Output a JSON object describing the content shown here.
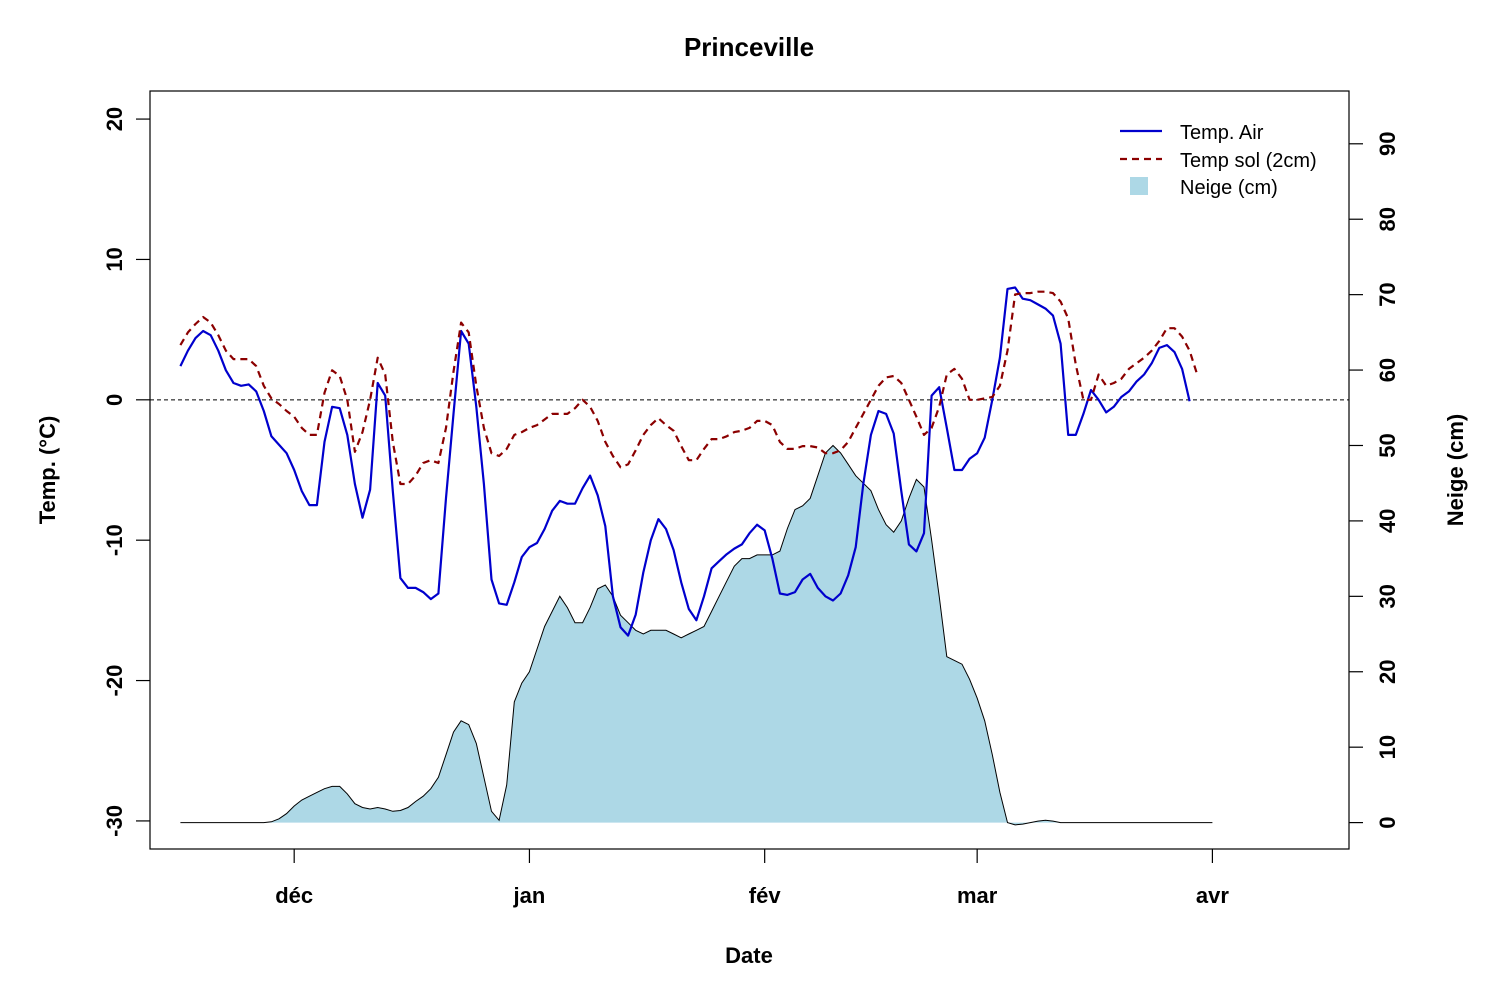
{
  "chart_data": {
    "type": "line",
    "title": "Princeville",
    "xlabel": "Date",
    "ylabel": "Temp. (°C)",
    "y2label": "Neige (cm)",
    "ylim": [
      -32,
      22
    ],
    "y2lim": [
      -3.5,
      97
    ],
    "yticks": [
      -30,
      -20,
      -10,
      0,
      10,
      20
    ],
    "y2ticks": [
      0,
      10,
      20,
      30,
      40,
      50,
      60,
      70,
      80,
      90
    ],
    "x_start_day": -15,
    "xlim": [
      -19,
      139
    ],
    "xticks": [
      {
        "label": "déc",
        "day": 0
      },
      {
        "label": "jan",
        "day": 31
      },
      {
        "label": "fév",
        "day": 62
      },
      {
        "label": "mar",
        "day": 90
      },
      {
        "label": "avr",
        "day": 121
      }
    ],
    "reference_line": {
      "y": 0,
      "style": "dashed",
      "color": "#000000"
    },
    "legend": {
      "position": "top-right",
      "entries": [
        {
          "label": "Temp. Air",
          "color": "#0000cd",
          "style": "solid"
        },
        {
          "label": "Temp sol (2cm)",
          "color": "#8b0000",
          "style": "dashed"
        },
        {
          "label": "Neige (cm)",
          "color": "#add8e6",
          "style": "fill"
        }
      ]
    },
    "series": [
      {
        "name": "Temp. Air",
        "axis": "left",
        "color": "#0000cd",
        "style": "solid",
        "values": [
          2.4,
          3.5,
          4.4,
          4.9,
          4.6,
          3.5,
          2.1,
          1.2,
          1.0,
          1.1,
          0.6,
          -0.8,
          -2.6,
          -3.2,
          -3.8,
          -5.0,
          -6.5,
          -7.5,
          -7.5,
          -3.0,
          -0.5,
          -0.6,
          -2.5,
          -6.0,
          -8.4,
          -6.4,
          1.2,
          0.3,
          -6.5,
          -12.7,
          -13.4,
          -13.4,
          -13.7,
          -14.2,
          -13.8,
          -7.0,
          -1.0,
          4.9,
          4.0,
          -0.5,
          -6.0,
          -12.8,
          -14.5,
          -14.6,
          -13.0,
          -11.2,
          -10.5,
          -10.2,
          -9.2,
          -7.9,
          -7.2,
          -7.4,
          -7.4,
          -6.3,
          -5.4,
          -6.8,
          -9.0,
          -14.0,
          -16.2,
          -16.8,
          -15.3,
          -12.3,
          -10.0,
          -8.5,
          -9.2,
          -10.7,
          -13.0,
          -14.9,
          -15.7,
          -14.0,
          -12.0,
          -11.5,
          -11.0,
          -10.6,
          -10.3,
          -9.5,
          -8.9,
          -9.3,
          -11.3,
          -13.8,
          -13.9,
          -13.7,
          -12.8,
          -12.4,
          -13.4,
          -14.0,
          -14.3,
          -13.8,
          -12.5,
          -10.5,
          -6.0,
          -2.5,
          -0.8,
          -1.0,
          -2.4,
          -6.5,
          -10.3,
          -10.8,
          -9.5,
          0.3,
          0.9,
          -2.0,
          -5.0,
          -5.0,
          -4.2,
          -3.8,
          -2.7,
          0.0,
          3.0,
          7.9,
          8.0,
          7.2,
          7.1,
          6.8,
          6.5,
          6.0,
          4.0,
          -2.5,
          -2.5,
          -1.0,
          0.7,
          0.0,
          -0.9,
          -0.5,
          0.2,
          0.6,
          1.3,
          1.8,
          2.6,
          3.7,
          3.9,
          3.4,
          2.2,
          -0.1
        ]
      },
      {
        "name": "Temp sol (2cm)",
        "axis": "left",
        "color": "#8b0000",
        "style": "dashed",
        "values": [
          3.9,
          4.8,
          5.4,
          5.9,
          5.5,
          4.6,
          3.5,
          2.9,
          2.9,
          2.9,
          2.4,
          1.0,
          0.1,
          -0.3,
          -0.8,
          -1.2,
          -2.0,
          -2.5,
          -2.5,
          0.5,
          2.1,
          1.7,
          0.0,
          -3.7,
          -2.3,
          0.0,
          3.0,
          1.8,
          -3.0,
          -6.0,
          -6.0,
          -5.4,
          -4.5,
          -4.3,
          -4.5,
          -2.0,
          2.0,
          5.5,
          4.8,
          1.0,
          -2.0,
          -3.8,
          -4.0,
          -3.5,
          -2.5,
          -2.3,
          -2.0,
          -1.8,
          -1.4,
          -1.0,
          -1.0,
          -1.0,
          -0.6,
          0.0,
          -0.5,
          -1.5,
          -3.0,
          -4.0,
          -4.8,
          -4.6,
          -3.6,
          -2.5,
          -1.8,
          -1.3,
          -1.8,
          -2.2,
          -3.3,
          -4.3,
          -4.3,
          -3.5,
          -2.8,
          -2.8,
          -2.6,
          -2.3,
          -2.2,
          -2.0,
          -1.5,
          -1.5,
          -1.8,
          -3.0,
          -3.5,
          -3.5,
          -3.3,
          -3.3,
          -3.4,
          -3.8,
          -3.8,
          -3.6,
          -3.0,
          -2.0,
          -1.0,
          0.0,
          1.0,
          1.6,
          1.7,
          1.2,
          0.0,
          -1.2,
          -2.5,
          -2.0,
          -0.5,
          1.8,
          2.2,
          1.5,
          0.0,
          0.0,
          0.1,
          0.2,
          1.0,
          3.5,
          7.5,
          7.6,
          7.6,
          7.7,
          7.7,
          7.6,
          7.0,
          5.8,
          2.5,
          0.0,
          0.0,
          1.8,
          1.0,
          1.2,
          1.5,
          2.2,
          2.6,
          3.0,
          3.5,
          4.2,
          5.1,
          5.1,
          4.5,
          3.5,
          1.8
        ]
      },
      {
        "name": "Neige (cm)",
        "axis": "right",
        "color": "#add8e6",
        "style": "fill",
        "values": [
          0,
          0,
          0,
          0,
          0,
          0,
          0,
          0,
          0,
          0,
          0,
          0,
          0.1,
          0.5,
          1.2,
          2.2,
          3.0,
          3.5,
          4.0,
          4.5,
          4.8,
          4.8,
          3.8,
          2.5,
          2.0,
          1.8,
          2.0,
          1.8,
          1.5,
          1.6,
          2.0,
          2.8,
          3.5,
          4.5,
          6.0,
          9.0,
          12.0,
          13.5,
          13.0,
          10.5,
          6.0,
          1.5,
          0.3,
          5.0,
          16.0,
          18.5,
          20.0,
          23.0,
          26.0,
          28.0,
          30.0,
          28.5,
          26.5,
          26.5,
          28.5,
          31.0,
          31.5,
          30.0,
          27.5,
          26.5,
          25.5,
          25.0,
          25.5,
          25.5,
          25.5,
          25.0,
          24.5,
          25.0,
          25.5,
          26.0,
          28.0,
          30.0,
          32.0,
          34.0,
          35.0,
          35.0,
          35.5,
          35.5,
          35.5,
          36.0,
          39.0,
          41.5,
          42.0,
          43.0,
          46.0,
          49.0,
          50.0,
          49.0,
          47.5,
          46.0,
          45.0,
          44.0,
          41.5,
          39.5,
          38.5,
          40.0,
          43.0,
          45.5,
          44.5,
          37.5,
          30.0,
          22.0,
          21.5,
          21.0,
          19.0,
          16.5,
          13.5,
          9.0,
          4.0,
          0,
          -0.3,
          -0.2,
          0,
          0.2,
          0.3,
          0.2,
          0,
          0,
          0,
          0,
          0,
          0,
          0,
          0,
          0,
          0,
          0,
          0,
          0,
          0,
          0,
          0,
          0,
          0,
          0,
          0,
          0
        ]
      }
    ]
  }
}
